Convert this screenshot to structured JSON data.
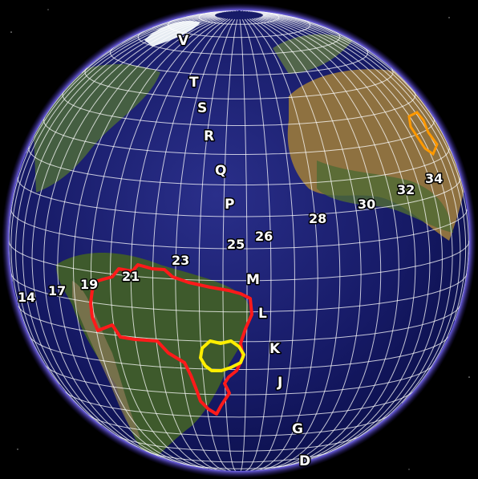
{
  "globe": {
    "ocean_color": "#1a1f6e",
    "atmosphere_color": "#6a5cff",
    "grid_color": "#ffffff",
    "background_color": "#000000"
  },
  "column_labels": {
    "v": "V",
    "t": "T",
    "s": "S",
    "r": "R",
    "q": "Q",
    "p": "P",
    "m": "M",
    "l": "L",
    "k": "K",
    "j": "J",
    "g": "G",
    "d": "D"
  },
  "zone_labels": {
    "z14": "14",
    "z17": "17",
    "z19": "19",
    "z21": "21",
    "z23": "23",
    "z25": "25",
    "z26": "26",
    "z28": "28",
    "z30": "30",
    "z32": "32",
    "z34": "34"
  },
  "outlines": {
    "brazil_outline_color": "#ff1a1a",
    "region_outline_color": "#ffee00",
    "africa_marker_color": "#ff9900"
  }
}
